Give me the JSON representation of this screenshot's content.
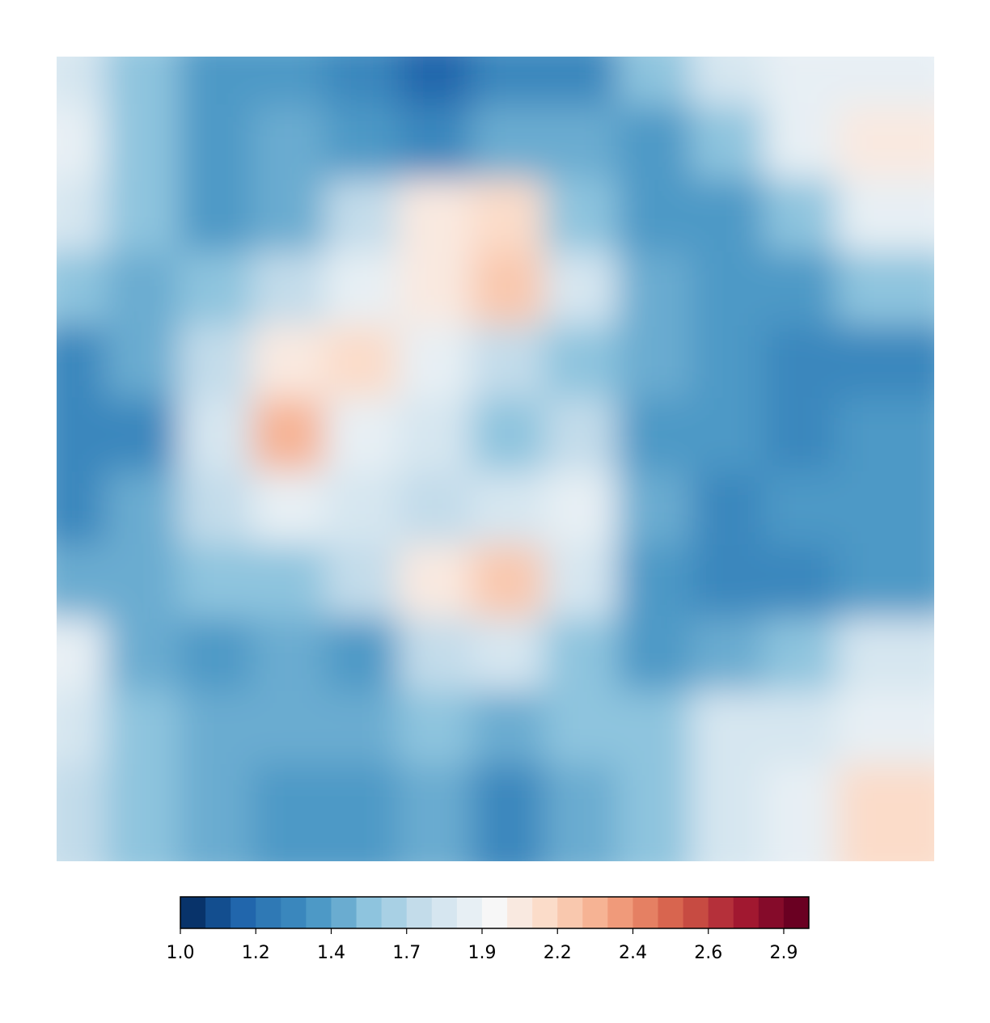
{
  "chart_data": {
    "type": "contourf",
    "z": [
      [
        1.8,
        1.6,
        1.4,
        1.4,
        1.3,
        1.2,
        1.3,
        1.3,
        1.6,
        1.8,
        1.9,
        1.9
      ],
      [
        1.9,
        1.6,
        1.4,
        1.5,
        1.4,
        1.3,
        1.5,
        1.5,
        1.4,
        1.6,
        1.9,
        2.0
      ],
      [
        1.8,
        1.6,
        1.4,
        1.5,
        1.7,
        2.0,
        2.1,
        1.6,
        1.4,
        1.4,
        1.6,
        1.9
      ],
      [
        1.6,
        1.5,
        1.6,
        1.7,
        1.9,
        2.0,
        2.2,
        1.8,
        1.5,
        1.4,
        1.4,
        1.6
      ],
      [
        1.3,
        1.5,
        1.7,
        2.0,
        2.1,
        1.9,
        1.7,
        1.6,
        1.5,
        1.4,
        1.3,
        1.3
      ],
      [
        1.3,
        1.3,
        1.8,
        2.3,
        1.9,
        1.8,
        1.6,
        1.7,
        1.4,
        1.4,
        1.3,
        1.4
      ],
      [
        1.3,
        1.5,
        1.7,
        1.9,
        1.8,
        1.7,
        1.8,
        1.9,
        1.5,
        1.3,
        1.4,
        1.4
      ],
      [
        1.5,
        1.5,
        1.6,
        1.6,
        1.7,
        2.0,
        2.2,
        1.8,
        1.4,
        1.3,
        1.3,
        1.4
      ],
      [
        1.9,
        1.5,
        1.4,
        1.5,
        1.4,
        1.7,
        1.8,
        1.6,
        1.4,
        1.5,
        1.6,
        1.8
      ],
      [
        1.8,
        1.6,
        1.5,
        1.5,
        1.5,
        1.6,
        1.5,
        1.6,
        1.6,
        1.8,
        1.8,
        1.9
      ],
      [
        1.7,
        1.6,
        1.5,
        1.4,
        1.4,
        1.5,
        1.3,
        1.5,
        1.6,
        1.8,
        1.9,
        2.1
      ]
    ],
    "clim": [
      0.98,
      2.934
    ],
    "colors": [
      "#08336a",
      "#134e8f",
      "#2166ac",
      "#2f79b5",
      "#3a87bd",
      "#4d99c6",
      "#6aacd0",
      "#8ec4de",
      "#a8d0e4",
      "#c3dcea",
      "#d6e6f0",
      "#e7eff4",
      "#f7f7f7",
      "#f9e9e0",
      "#fbdcc9",
      "#f9c8ae",
      "#f6b394",
      "#f09a7a",
      "#e58063",
      "#d8654f",
      "#c74b42",
      "#b5303a",
      "#a11830",
      "#850b2a",
      "#6a0022"
    ],
    "cticks": [
      {
        "value": 0.98,
        "label": "1.0"
      },
      {
        "value": 1.2145,
        "label": "1.2"
      },
      {
        "value": 1.449,
        "label": "1.4"
      },
      {
        "value": 1.6835,
        "label": "1.7"
      },
      {
        "value": 1.918,
        "label": "1.9"
      },
      {
        "value": 2.1525,
        "label": "2.2"
      },
      {
        "value": 2.387,
        "label": "2.4"
      },
      {
        "value": 2.6215,
        "label": "2.6"
      },
      {
        "value": 2.856,
        "label": "2.9"
      }
    ]
  }
}
